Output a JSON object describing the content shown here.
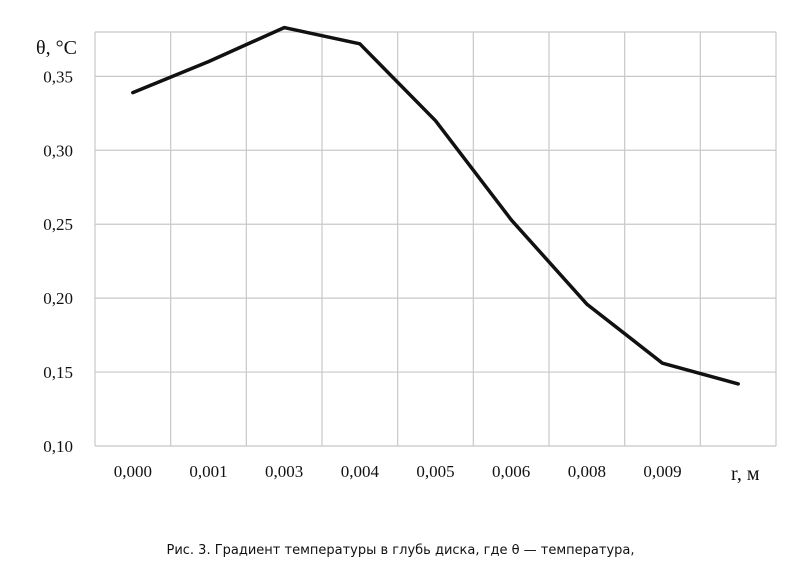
{
  "chart_data": {
    "type": "line",
    "ylabel": "θ, °C",
    "xlabel": "r, м",
    "x_tick_labels": [
      "0,000",
      "0,001",
      "0,003",
      "0,004",
      "0,005",
      "0,006",
      "0,008",
      "0,009"
    ],
    "y_tick_labels": [
      "0,10",
      "0,15",
      "0,20",
      "0,25",
      "0,30",
      "0,35"
    ],
    "y_ticks": [
      0.1,
      0.15,
      0.2,
      0.25,
      0.3,
      0.35
    ],
    "ylim": [
      0.1,
      0.38
    ],
    "grid": true,
    "series": [
      {
        "color": "#111111",
        "values": [
          0.339,
          0.36,
          0.383,
          0.372,
          0.32,
          0.253,
          0.196,
          0.156,
          0.142
        ]
      }
    ]
  },
  "caption": "Рис. 3. Градиент температуры в глубь диска, где θ — температура,"
}
